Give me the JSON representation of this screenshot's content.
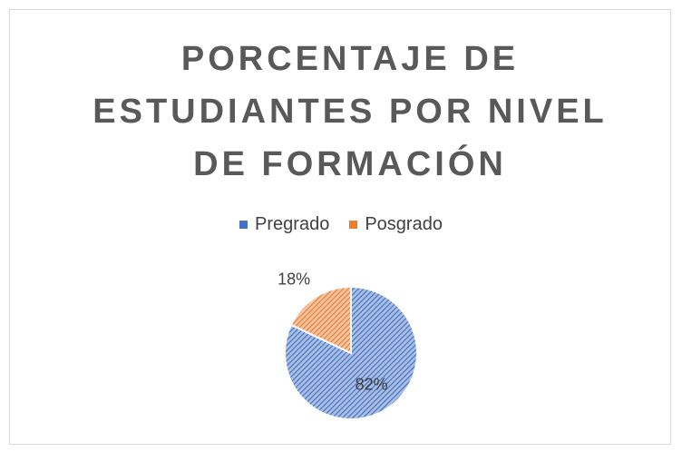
{
  "chart_data": {
    "type": "pie",
    "title": "PORCENTAJE DE ESTUDIANTES POR NIVEL DE FORMACIÓN",
    "categories": [
      "Pregrado",
      "Posgrado"
    ],
    "values": [
      82,
      18
    ],
    "value_labels": [
      "82%",
      "18%"
    ],
    "colors": [
      "#4472c4",
      "#ed7d31"
    ],
    "legend": "top"
  }
}
